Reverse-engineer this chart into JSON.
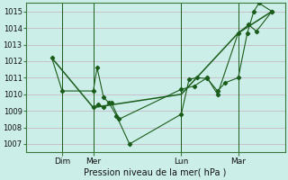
{
  "background_color": "#cceee8",
  "grid_color": "#c8b8c8",
  "line_color": "#1a5c1a",
  "title": "Pression niveau de la mer( hPa )",
  "ylim": [
    1006.5,
    1015.5
  ],
  "yticks": [
    1007,
    1008,
    1009,
    1010,
    1011,
    1012,
    1013,
    1014,
    1015
  ],
  "xlim": [
    0,
    100
  ],
  "day_labels": [
    "Dim",
    "Mer",
    "Lun",
    "Mar"
  ],
  "day_positions": [
    14,
    26,
    60,
    82
  ],
  "vline_positions": [
    14,
    26,
    60,
    82
  ],
  "series1_x": [
    10,
    14,
    26,
    27.5,
    30,
    32,
    35,
    40,
    60,
    63,
    66,
    70,
    74,
    77,
    82,
    85.5,
    88,
    90,
    95
  ],
  "series1_y": [
    1012.2,
    1010.2,
    1010.2,
    1011.6,
    1009.8,
    1009.5,
    1008.7,
    1007.0,
    1008.8,
    1010.9,
    1011.0,
    1010.95,
    1010.2,
    1010.7,
    1011.0,
    1013.7,
    1015.0,
    1015.5,
    1015.0
  ],
  "series2_x": [
    10,
    26,
    60,
    82,
    95
  ],
  "series2_y": [
    1012.2,
    1009.2,
    1010.0,
    1013.7,
    1015.0
  ],
  "series3_x": [
    26,
    28,
    30,
    33,
    36,
    60,
    65,
    70,
    74,
    82,
    86,
    89,
    95
  ],
  "series3_y": [
    1009.2,
    1009.4,
    1009.2,
    1009.5,
    1008.5,
    1010.3,
    1010.5,
    1011.0,
    1010.0,
    1013.7,
    1014.2,
    1013.8,
    1015.0
  ]
}
